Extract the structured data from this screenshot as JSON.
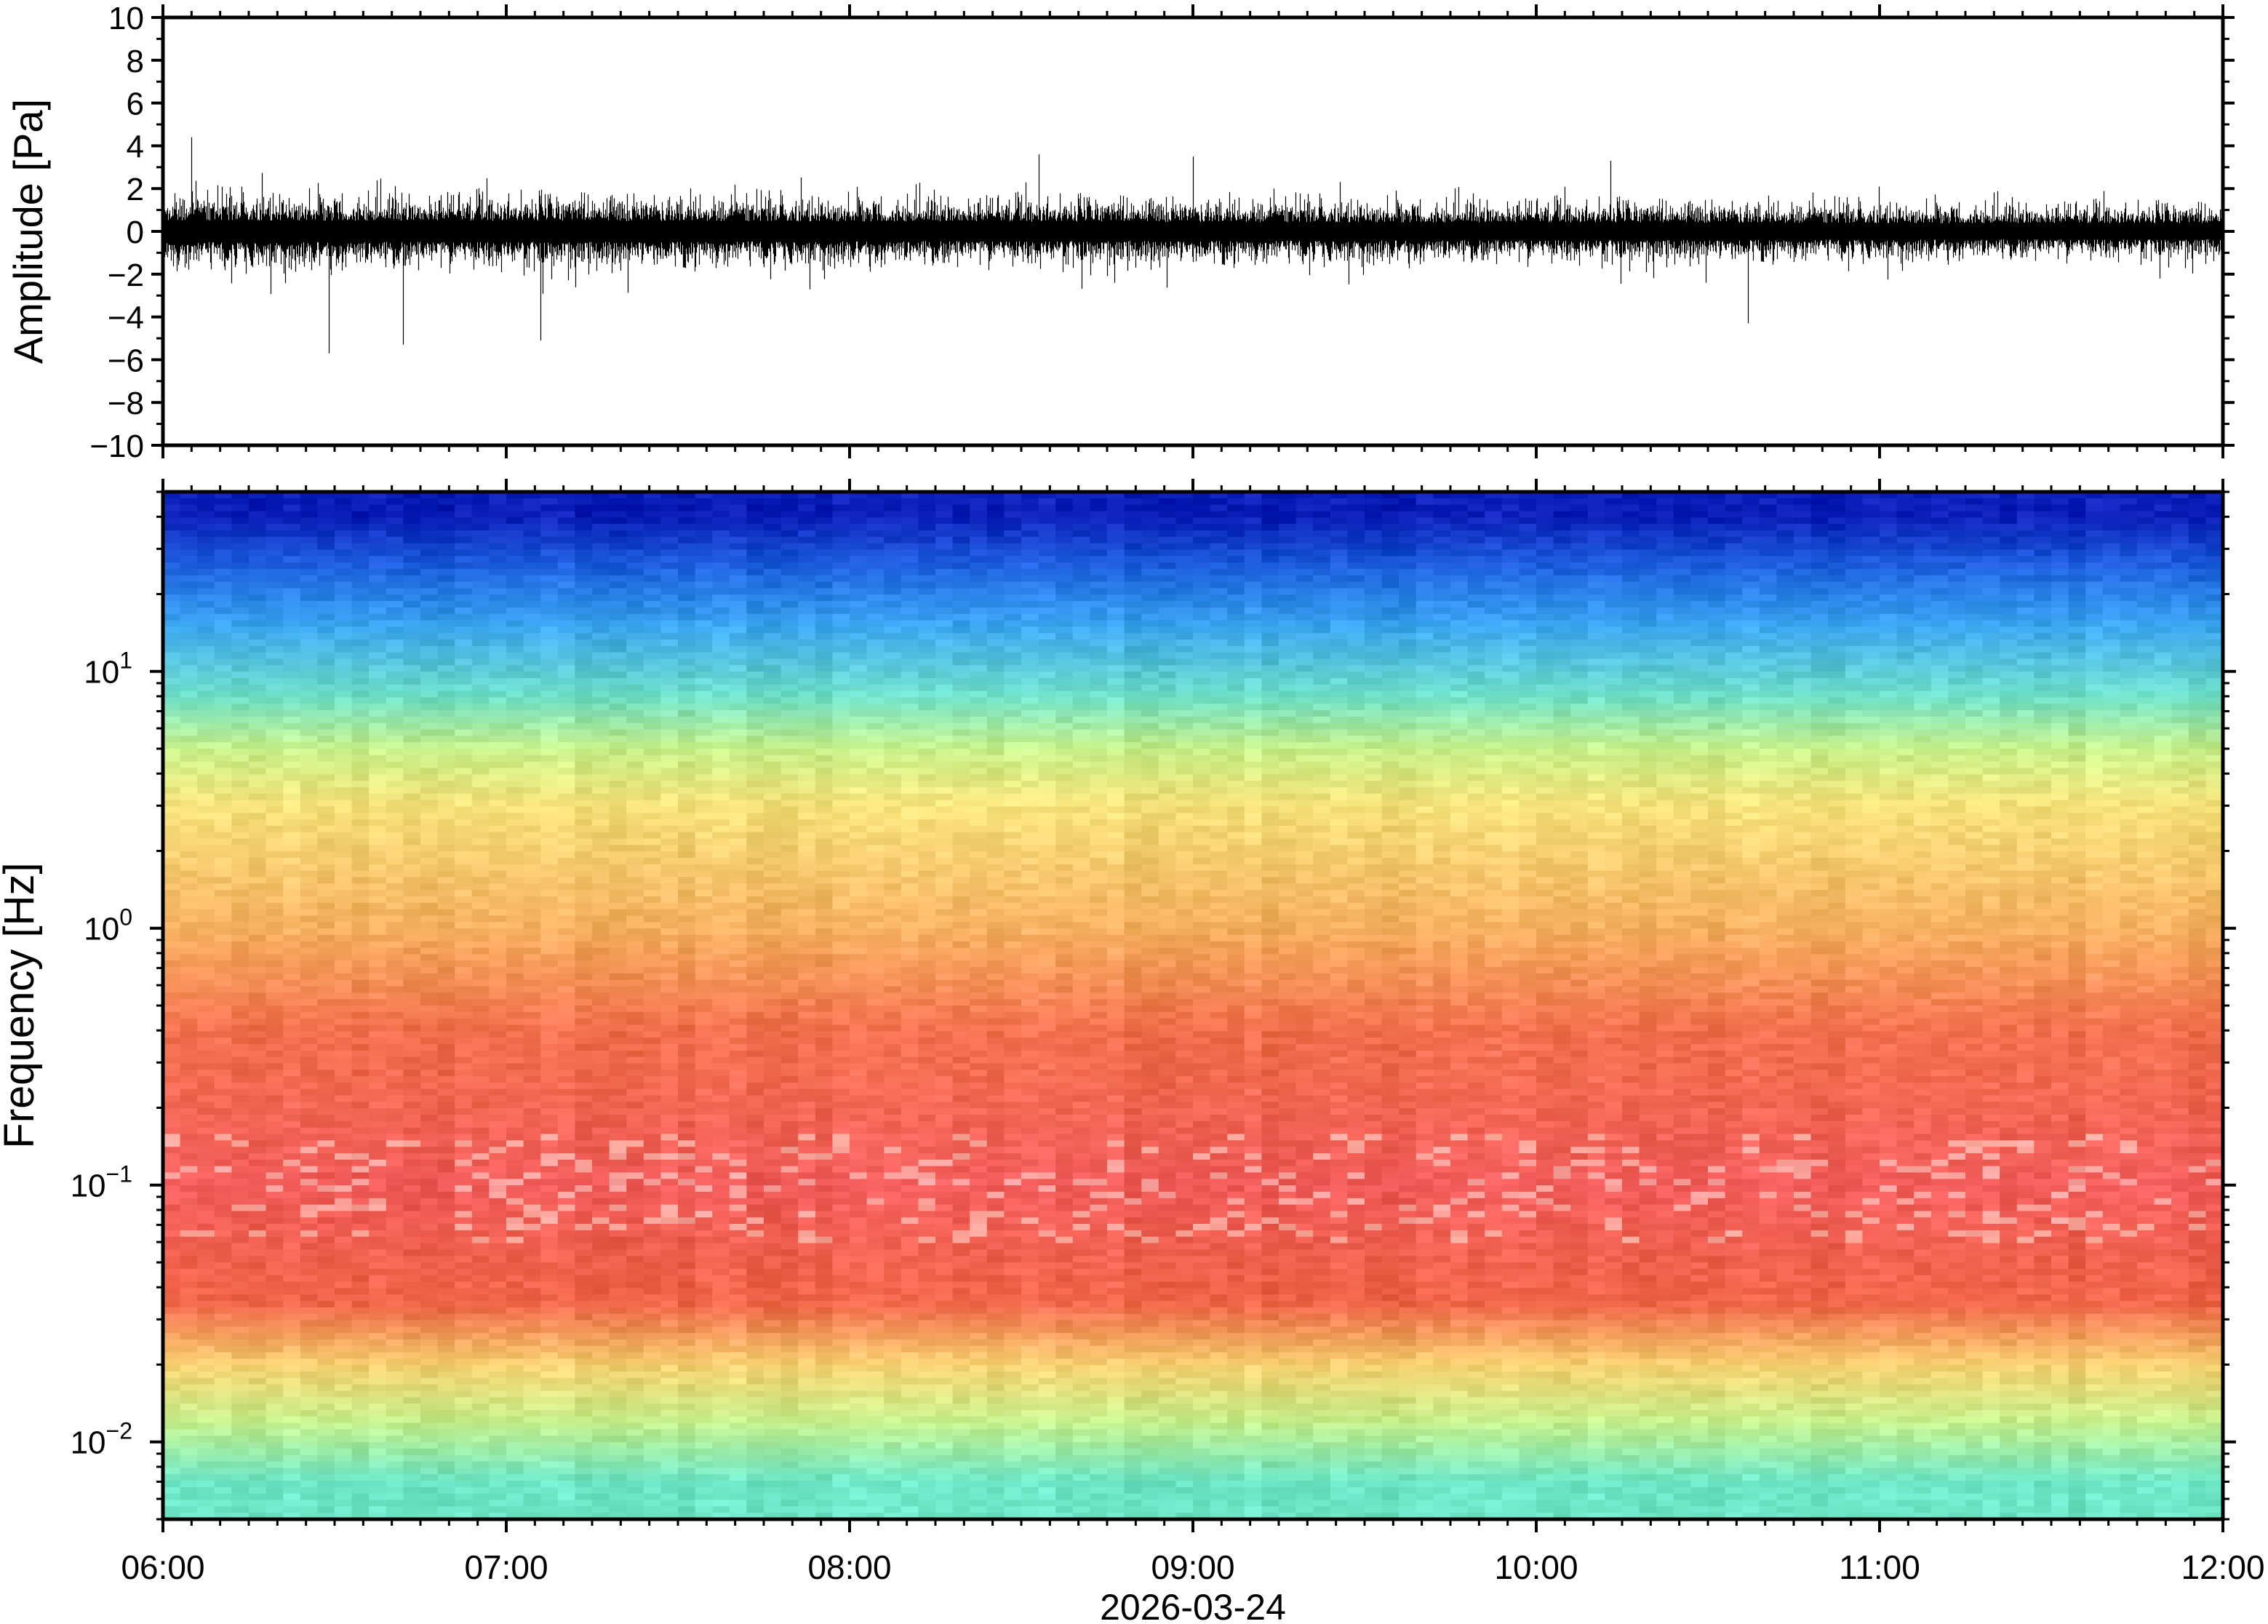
{
  "chart_data": [
    {
      "type": "line",
      "panel": "waveform",
      "ylabel": "Amplitude [Pa]",
      "xlabel": "",
      "ylim": [
        -10,
        10
      ],
      "yticks": [
        -10,
        -8,
        -6,
        -4,
        -2,
        0,
        2,
        4,
        6,
        8,
        10
      ],
      "ytick_labels": [
        "−10",
        "−8",
        "−6",
        "−4",
        "−2",
        "0",
        "2",
        "4",
        "6",
        "8",
        "10"
      ],
      "xlim": [
        "06:00",
        "12:00"
      ],
      "grid": false,
      "series": [
        {
          "color": "#000000",
          "x": [
            "06:00",
            "06:30",
            "07:00",
            "07:30",
            "08:00",
            "08:30",
            "09:00",
            "09:30",
            "10:00",
            "10:30",
            "11:00",
            "11:30",
            "12:00"
          ],
          "typical_range": [
            -2,
            2
          ],
          "peaks": [
            {
              "time": "06:05",
              "value": 4.4
            },
            {
              "time": "06:29",
              "value": -5.7
            },
            {
              "time": "06:42",
              "value": -5.3
            },
            {
              "time": "07:06",
              "value": -5.1
            },
            {
              "time": "08:33",
              "value": 3.6
            },
            {
              "time": "09:00",
              "value": 3.5
            },
            {
              "time": "10:37",
              "value": -4.3
            },
            {
              "time": "10:13",
              "value": 3.3
            }
          ]
        }
      ]
    },
    {
      "type": "heatmap",
      "panel": "spectrogram",
      "ylabel": "Frequency [Hz]",
      "yscale": "log",
      "ylim": [
        0.005,
        50
      ],
      "yticks": [
        0.01,
        0.1,
        1,
        10
      ],
      "ytick_labels": [
        {
          "base": "10",
          "exp": "−2"
        },
        {
          "base": "10",
          "exp": "−1"
        },
        {
          "base": "10",
          "exp": "0"
        },
        {
          "base": "10",
          "exp": "1"
        }
      ],
      "xlim": [
        "06:00",
        "12:00"
      ],
      "xticks": [
        "06:00",
        "07:00",
        "08:00",
        "09:00",
        "10:00",
        "11:00",
        "12:00"
      ],
      "xlabel": "2026‑03‑24",
      "colormap": "jet-like (red high power, blue low power)",
      "colorbar": false,
      "color_stops_by_frequency_hz": [
        {
          "freq": 40,
          "color": "#0a1fb8"
        },
        {
          "freq": 25,
          "color": "#1e63e0"
        },
        {
          "freq": 15,
          "color": "#3aa6f0"
        },
        {
          "freq": 8,
          "color": "#6fe0c8"
        },
        {
          "freq": 5,
          "color": "#c8f08a"
        },
        {
          "freq": 3,
          "color": "#f6e27a"
        },
        {
          "freq": 1,
          "color": "#f6b060"
        },
        {
          "freq": 0.4,
          "color": "#f3704d"
        },
        {
          "freq": 0.1,
          "color": "#f25c5a"
        },
        {
          "freq": 0.035,
          "color": "#f06448"
        },
        {
          "freq": 0.02,
          "color": "#f7d070"
        },
        {
          "freq": 0.012,
          "color": "#c6f08c"
        },
        {
          "freq": 0.007,
          "color": "#6de6c6"
        }
      ]
    }
  ]
}
